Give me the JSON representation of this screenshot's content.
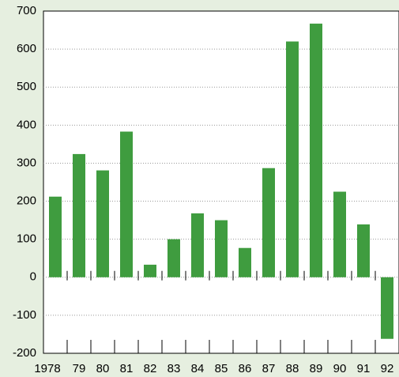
{
  "chart_data": {
    "type": "bar",
    "categories": [
      "1978",
      "79",
      "80",
      "81",
      "82",
      "83",
      "84",
      "85",
      "86",
      "87",
      "88",
      "89",
      "90",
      "91",
      "92"
    ],
    "values": [
      212,
      324,
      281,
      383,
      33,
      100,
      168,
      150,
      77,
      287,
      620,
      667,
      225,
      139,
      -162
    ],
    "color": "#3f9c3f",
    "ylim": [
      -200,
      700
    ],
    "yticks": [
      -200,
      -100,
      0,
      100,
      200,
      300,
      400,
      500,
      600,
      700
    ],
    "grid": true
  }
}
